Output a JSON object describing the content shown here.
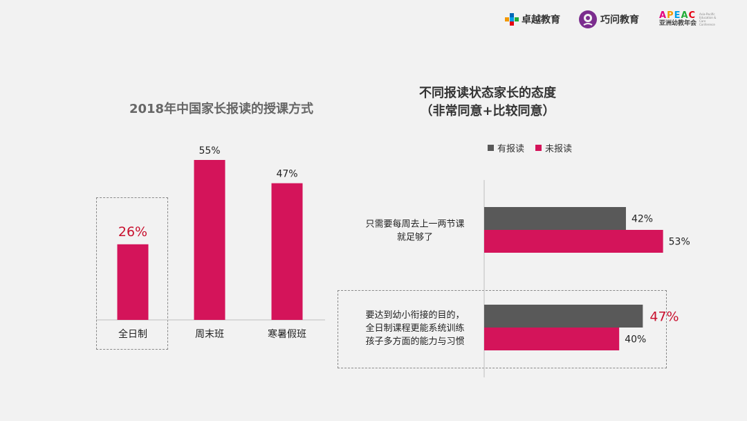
{
  "logos": {
    "zhuoyue": "卓越教育",
    "qiaowen": "巧问教育",
    "apeac": {
      "word": "APEAC",
      "cn": "亚洲幼教年会",
      "sub": "Asia-Pacific Education & Care Conference"
    }
  },
  "colors": {
    "pink": "#d4145a",
    "gray": "#595959",
    "highlight": "#c8102e"
  },
  "chart_data": [
    {
      "type": "bar",
      "title": "2018年中国家长报读的授课方式",
      "categories": [
        "全日制",
        "周末班",
        "寒暑假班"
      ],
      "values": [
        26,
        55,
        47
      ],
      "value_labels": [
        "26%",
        "55%",
        "47%"
      ],
      "ylim": [
        0,
        60
      ],
      "highlight_index": 0
    },
    {
      "type": "bar",
      "orientation": "horizontal",
      "title": "不同报读状态家长的态度",
      "subtitle": "（非常同意+比较同意）",
      "legend_position": "top",
      "categories": [
        "只需要每周去上一两节课就足够了",
        "要达到幼小衔接的目的，全日制课程更能系统训练孩子多方面的能力与习惯"
      ],
      "category_lines": [
        [
          "只需要每周去上一两节课",
          "就足够了"
        ],
        [
          "要达到幼小衔接的目的，",
          "全日制课程更能系统训练",
          "孩子多方面的能力与习惯"
        ]
      ],
      "series": [
        {
          "name": "有报读",
          "values": [
            42,
            47
          ],
          "labels": [
            "42%",
            "47%"
          ]
        },
        {
          "name": "未报读",
          "values": [
            53,
            40
          ],
          "labels": [
            "53%",
            "40%"
          ]
        }
      ],
      "xlim": [
        0,
        100
      ],
      "highlight": {
        "category_index": 1,
        "series_index": 0
      }
    }
  ]
}
